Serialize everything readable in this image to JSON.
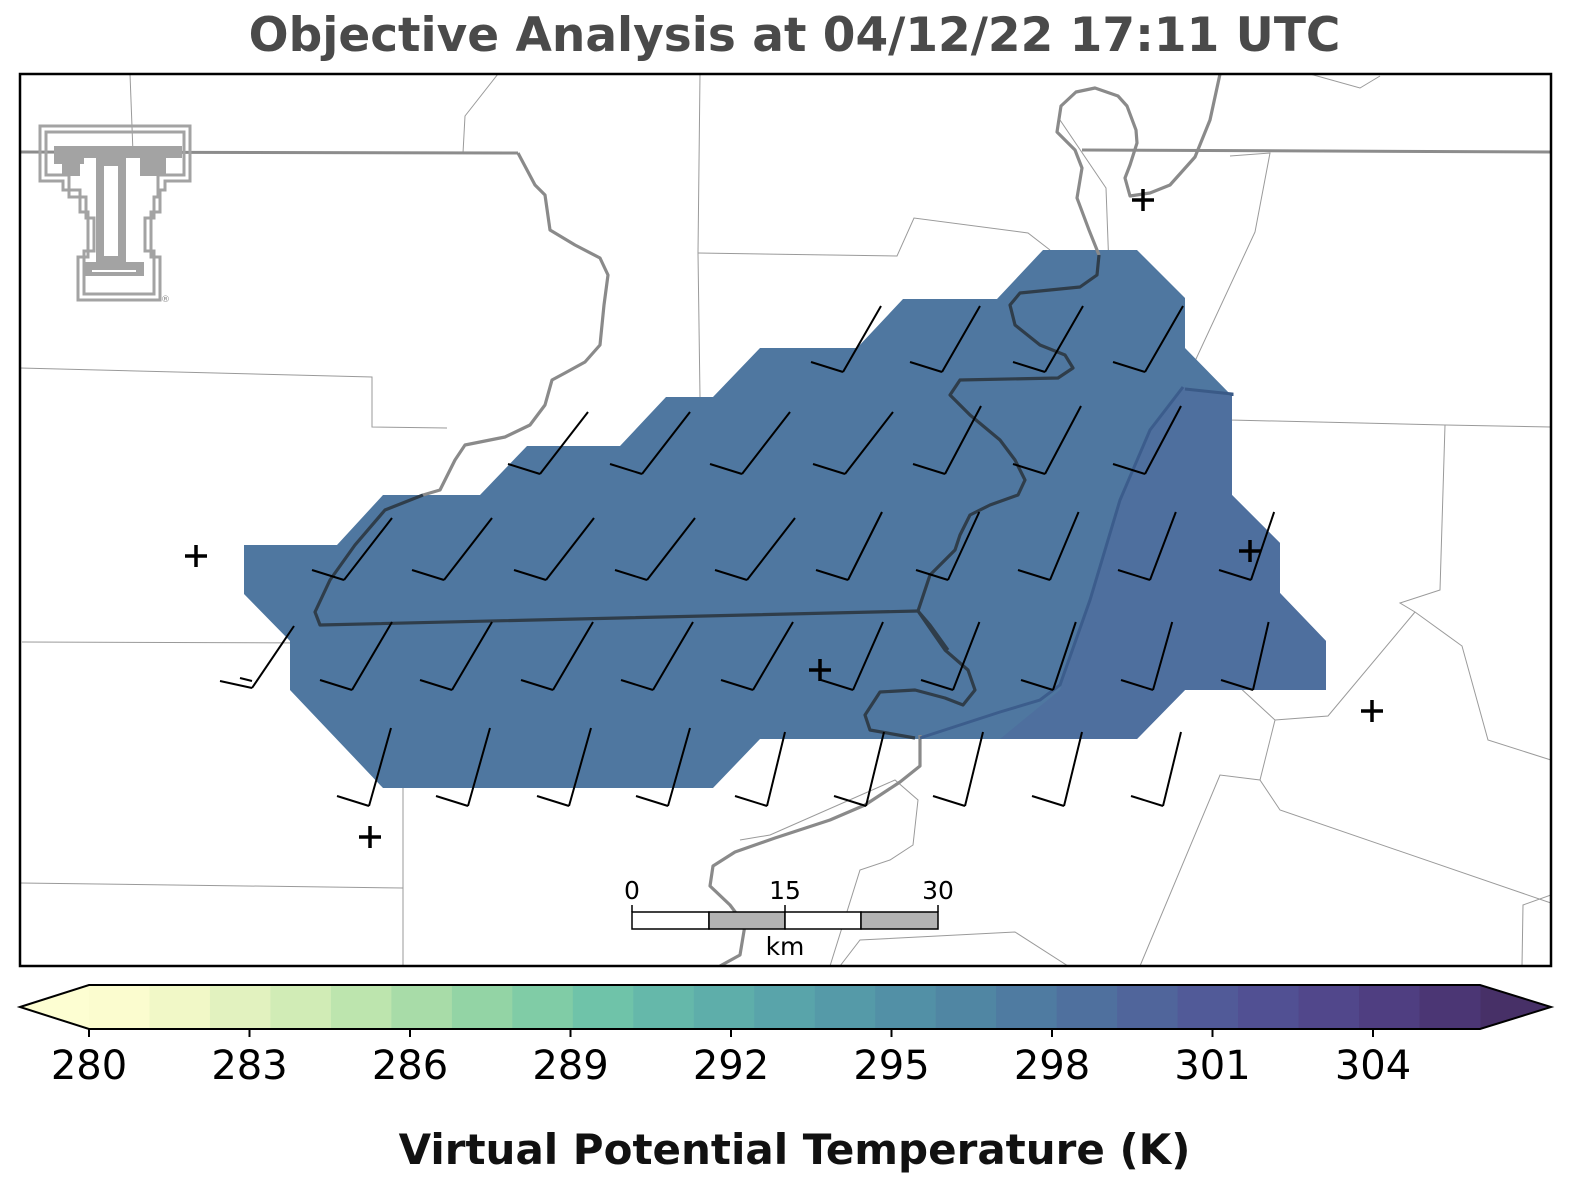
{
  "title": "Objective Analysis at 04/12/22 17:11 UTC",
  "colors": {
    "analysis_fill": "#4f77a0",
    "analysis_fill_east": "#4d6d9d",
    "river": "#8a8a8a",
    "river_on_fill": "#2f3d4a",
    "boundary": "#8c8c8c",
    "barb": "#000000",
    "station": "#000000"
  },
  "logo": {
    "name": "Texas Tech Double T",
    "mark": "®"
  },
  "scale_bar": {
    "ticks": [
      "0",
      "15",
      "30"
    ],
    "unit": "km"
  },
  "colorbar": {
    "label": "Virtual Potential Temperature (K)",
    "min": 280,
    "max": 306,
    "step": 1,
    "tick_labels": [
      "280",
      "283",
      "286",
      "289",
      "292",
      "295",
      "298",
      "301",
      "304"
    ],
    "extend": "both",
    "colors": [
      "#fbfccf",
      "#f1f8c7",
      "#e2f2bf",
      "#d1ecb6",
      "#bde5ae",
      "#a8dca8",
      "#93d4a5",
      "#80cca6",
      "#6fc3a9",
      "#65b8aa",
      "#5eaeaa",
      "#59a4aa",
      "#559aa8",
      "#5290a6",
      "#5086a3",
      "#4f7ba1",
      "#4f709e",
      "#50659b",
      "#515a98",
      "#515093",
      "#51478b",
      "#4f3e81",
      "#4b3674"
    ],
    "under_color": "#fdfed2",
    "over_color": "#473067"
  },
  "stations": [
    {
      "name": "station-1"
    },
    {
      "name": "station-2"
    },
    {
      "name": "station-3"
    },
    {
      "name": "station-4"
    },
    {
      "name": "station-5"
    },
    {
      "name": "station-6"
    }
  ]
}
